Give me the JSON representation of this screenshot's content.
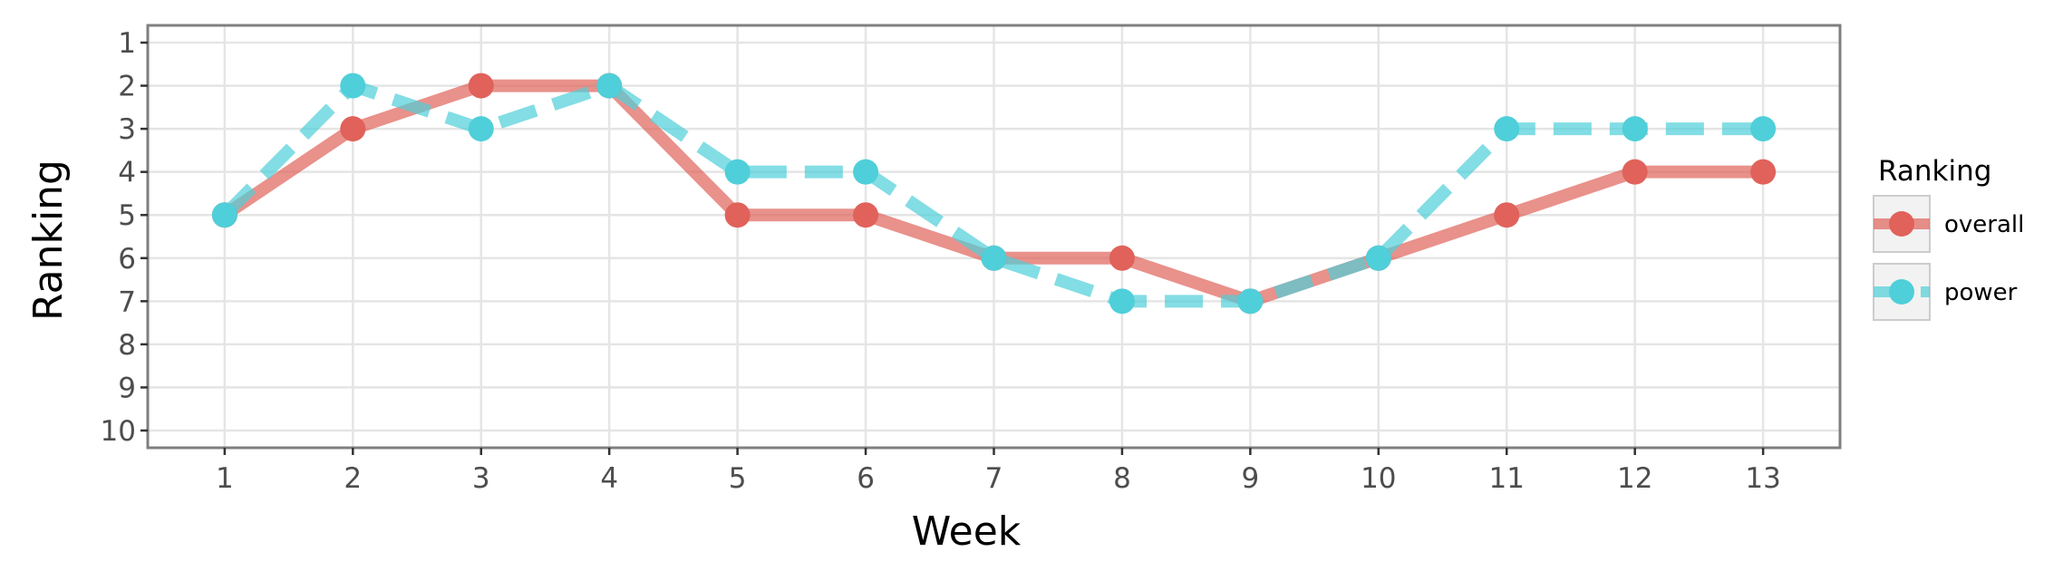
{
  "chart_data": {
    "type": "line",
    "xlabel": "Week",
    "ylabel": "Ranking",
    "x": [
      1,
      2,
      3,
      4,
      5,
      6,
      7,
      8,
      9,
      10,
      11,
      12,
      13
    ],
    "xlim": [
      0.4,
      13.6
    ],
    "ylim": [
      10.4,
      0.6
    ],
    "y_reversed": true,
    "y_ticks": [
      1,
      2,
      3,
      4,
      5,
      6,
      7,
      8,
      9,
      10
    ],
    "x_ticks": [
      1,
      2,
      3,
      4,
      5,
      6,
      7,
      8,
      9,
      10,
      11,
      12,
      13
    ],
    "grid": true,
    "legend": {
      "title": "Ranking",
      "position": "right"
    },
    "series": [
      {
        "name": "overall",
        "values": [
          5,
          3,
          2,
          2,
          5,
          5,
          6,
          6,
          7,
          6,
          5,
          4,
          4
        ],
        "color": "#E0625A",
        "line_style": "solid"
      },
      {
        "name": "power",
        "values": [
          5,
          2,
          3,
          2,
          4,
          4,
          6,
          7,
          7,
          6,
          3,
          3,
          3
        ],
        "color": "#4FCFD9",
        "line_style": "dashed"
      }
    ]
  }
}
